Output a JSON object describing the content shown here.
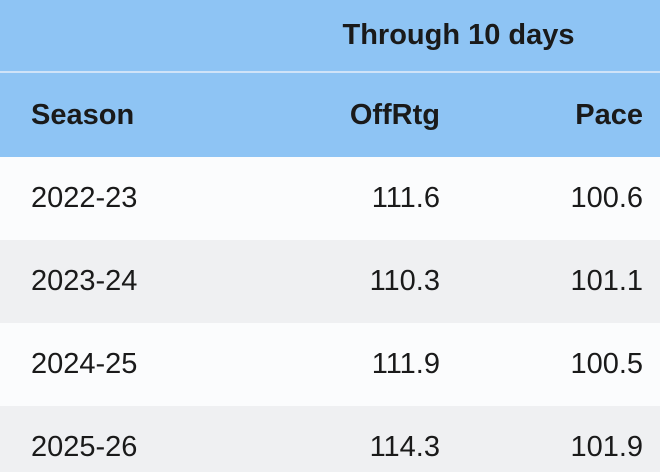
{
  "table": {
    "group_header": "Through 10 days",
    "columns": [
      "Season",
      "OffRtg",
      "Pace"
    ],
    "rows": [
      {
        "season": "2022-23",
        "offrtg": "111.6",
        "pace": "100.6"
      },
      {
        "season": "2023-24",
        "offrtg": "110.3",
        "pace": "101.1"
      },
      {
        "season": "2024-25",
        "offrtg": "111.9",
        "pace": "100.5"
      },
      {
        "season": "2025-26",
        "offrtg": "114.3",
        "pace": "101.9"
      }
    ]
  },
  "colors": {
    "header_background": "#8ec4f4",
    "header_divider": "#cfe3f8",
    "row_white": "#fbfcfd",
    "row_gray": "#eff0f2",
    "text": "#1a1a1a"
  },
  "chart_data": {
    "type": "table",
    "title": "Through 10 days",
    "columns": [
      "Season",
      "OffRtg",
      "Pace"
    ],
    "rows": [
      [
        "2022-23",
        111.6,
        100.6
      ],
      [
        "2023-24",
        110.3,
        101.1
      ],
      [
        "2024-25",
        111.9,
        100.5
      ],
      [
        "2025-26",
        114.3,
        101.9
      ]
    ]
  }
}
